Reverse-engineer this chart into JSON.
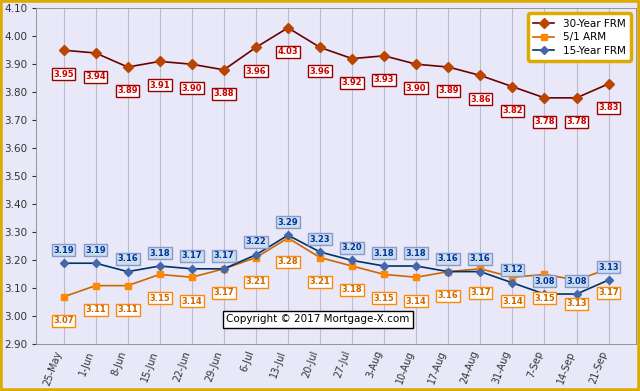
{
  "x_labels": [
    "25-May",
    "1-Jun",
    "8-Jun",
    "15-Jun",
    "22-Jun",
    "29-Jun",
    "6-Jul",
    "13-Jul",
    "20-Jul",
    "27-Jul",
    "3-Aug",
    "10-Aug",
    "17-Aug",
    "24-Aug",
    "31-Aug",
    "7-Sep",
    "14-Sep",
    "21-Sep"
  ],
  "frm30": [
    3.95,
    3.94,
    3.89,
    3.91,
    3.9,
    3.88,
    3.96,
    4.03,
    3.96,
    3.92,
    3.93,
    3.9,
    3.89,
    3.86,
    3.82,
    3.78,
    3.78,
    3.83
  ],
  "arm51": [
    3.07,
    3.11,
    3.11,
    3.15,
    3.14,
    3.17,
    3.21,
    3.28,
    3.21,
    3.18,
    3.15,
    3.14,
    3.16,
    3.17,
    3.14,
    3.15,
    3.13,
    3.17
  ],
  "frm15": [
    3.19,
    3.19,
    3.16,
    3.18,
    3.17,
    3.17,
    3.22,
    3.29,
    3.23,
    3.2,
    3.18,
    3.18,
    3.16,
    3.16,
    3.12,
    3.08,
    3.08,
    3.13
  ],
  "color_30frm_line": "#6B0000",
  "color_30frm_marker": "#BB4400",
  "color_30frm_label_text": "#CC0000",
  "color_30frm_label_edge": "#990000",
  "color_arm51_line": "#CC6600",
  "color_arm51_marker": "#FF8800",
  "color_arm51_label_text": "#CC6600",
  "color_arm51_label_edge": "#FF8800",
  "color_15frm_line": "#003366",
  "color_15frm_marker": "#4466AA",
  "color_15frm_label_text": "#003399",
  "color_15frm_label_edge": "#8899CC",
  "color_15frm_label_bg": "#CCDDEE",
  "ylim": [
    2.9,
    4.1
  ],
  "yticks": [
    2.9,
    3.0,
    3.1,
    3.2,
    3.3,
    3.4,
    3.5,
    3.6,
    3.7,
    3.8,
    3.9,
    4.0,
    4.1
  ],
  "copyright_text": "Copyright © 2017 Mortgage-X.com",
  "legend_30frm": "30-Year FRM",
  "legend_arm51": "5/1 ARM",
  "legend_15frm": "15-Year FRM",
  "bg_color": "#E8E8F8",
  "plot_bg_color": "#E8E8F8",
  "outer_border_color": "#DDAA00",
  "legend_border_color": "#DDAA00",
  "grid_color": "#BBBBCC"
}
